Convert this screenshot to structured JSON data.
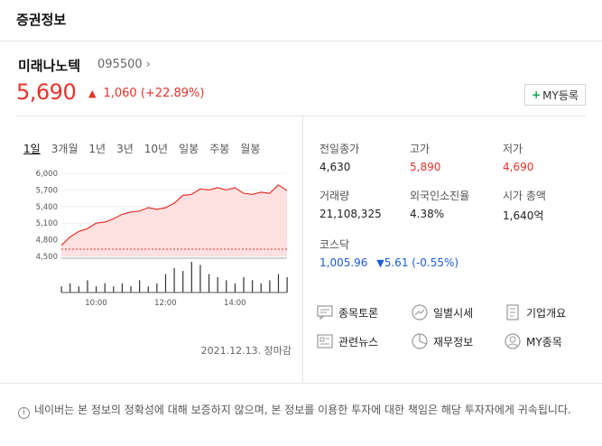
{
  "header": {
    "title": "증권정보"
  },
  "stock": {
    "name": "미래나노텍",
    "code": "095500",
    "price": "5,690",
    "change": "1,060",
    "change_pct": "(+22.89%)",
    "my_button": "MY등록"
  },
  "tabs": [
    "1일",
    "3개월",
    "1년",
    "3년",
    "10년",
    "일봉",
    "주봉",
    "월봉"
  ],
  "stats": {
    "prev_close": {
      "label": "전일종가",
      "value": "4,630"
    },
    "high": {
      "label": "고가",
      "value": "5,890"
    },
    "low": {
      "label": "저가",
      "value": "4,690"
    },
    "volume": {
      "label": "거래량",
      "value": "21,108,325"
    },
    "foreign": {
      "label": "외국인소진율",
      "value": "4.38%"
    },
    "mcap": {
      "label": "시가 총액",
      "value": "1,640억"
    },
    "index_label": "코스닥",
    "index_value": "1,005.96",
    "index_change": "5.61 (-0.55%)"
  },
  "links": {
    "discussion": "종목토론",
    "daily": "일별시세",
    "company": "기업개요",
    "news": "관련뉴스",
    "finance": "재무정보",
    "mystock": "MY종목"
  },
  "chart_date": "2021.12.13. 장마감",
  "notice": "네이버는 본 정보의 정확성에 대해 보증하지 않으며, 본 정보를 이용한 투자에 대한 책임은 해당 투자자에게 귀속됩니다.",
  "colors": {
    "up": "#e5332a",
    "down": "#1c5bd6",
    "accent": "#11a24b"
  },
  "chart_data": {
    "type": "line",
    "yticks": [
      "6,000",
      "5,700",
      "5,400",
      "5,100",
      "4,800",
      "4,500"
    ],
    "xticks": [
      "10:00",
      "12:00",
      "14:00"
    ],
    "ylim": [
      4500,
      6000
    ],
    "prev_close": 4630,
    "x_hours": [
      9.0,
      9.25,
      9.5,
      9.75,
      10.0,
      10.25,
      10.5,
      10.75,
      11.0,
      11.25,
      11.5,
      11.75,
      12.0,
      12.25,
      12.5,
      12.75,
      13.0,
      13.25,
      13.5,
      13.75,
      14.0,
      14.25,
      14.5,
      14.75,
      15.0,
      15.25,
      15.5
    ],
    "values": [
      4700,
      4850,
      4950,
      5000,
      5100,
      5120,
      5180,
      5260,
      5300,
      5320,
      5380,
      5350,
      5380,
      5460,
      5600,
      5620,
      5720,
      5700,
      5740,
      5700,
      5740,
      5640,
      5620,
      5660,
      5640,
      5790,
      5690
    ],
    "volume": [
      2,
      3,
      2,
      4,
      2,
      3,
      2,
      3,
      2,
      4,
      2,
      3,
      6,
      8,
      7,
      10,
      9,
      6,
      5,
      4,
      3,
      5,
      4,
      3,
      4,
      6,
      5
    ]
  }
}
